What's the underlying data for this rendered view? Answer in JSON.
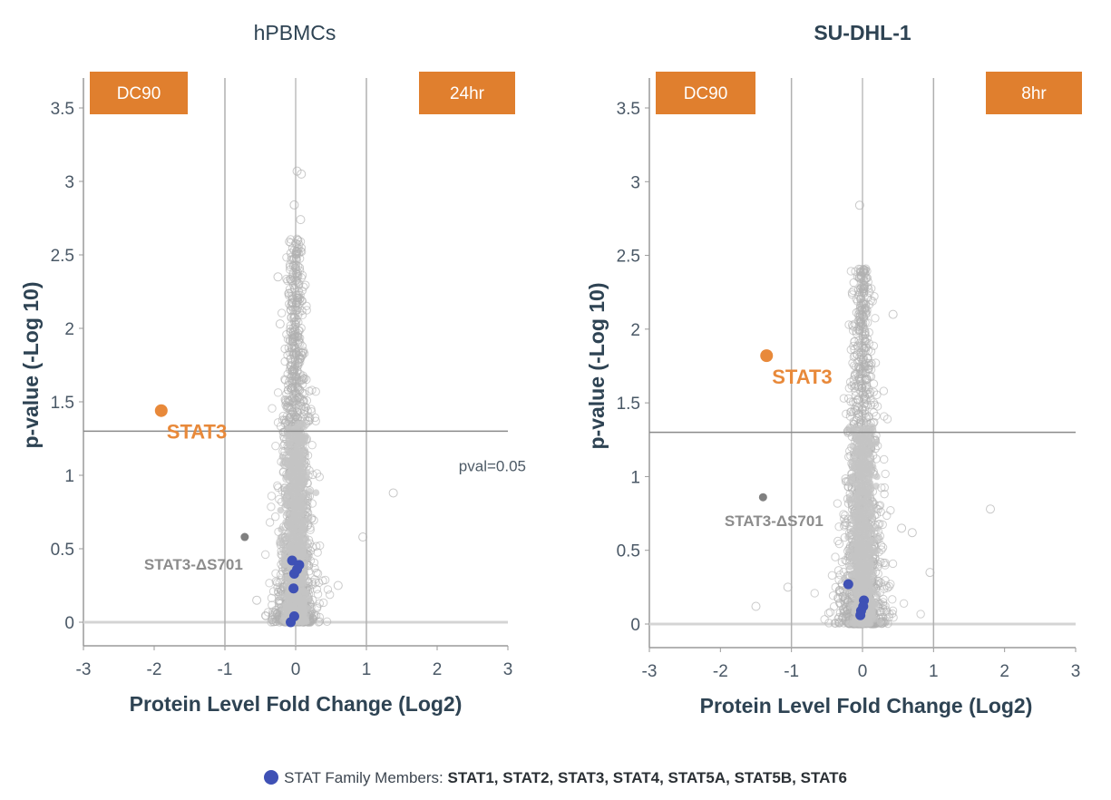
{
  "colors": {
    "badge": "#e07f2e",
    "stat3": "#e8893a",
    "stat_family": "#3f51b5",
    "background_points": "#b0b0b0",
    "stat3_ds701": "#808080",
    "gridline": "#9a9a9a",
    "axis_text": "#2e4353"
  },
  "legend": {
    "label": "STAT Family Members:",
    "members": "STAT1, STAT2, STAT3, STAT4, STAT5A, STAT5B, STAT6"
  },
  "chart_data": [
    {
      "type": "scatter",
      "title": "hPBMCs",
      "badge_left": "DC90",
      "badge_right": "24hr",
      "xlabel": "Protein Level Fold Change (Log2)",
      "ylabel": "p-value (-Log 10)",
      "xlim": [
        -3,
        3
      ],
      "ylim": [
        -0.16,
        3.7
      ],
      "xticks": [
        "-3",
        "-2",
        "-1",
        "0",
        "1",
        "2",
        "3"
      ],
      "yticks": [
        "0",
        "0.5",
        "1",
        "1.5",
        "2",
        "2.5",
        "3",
        "3.5"
      ],
      "vlines": [
        -1,
        0,
        1
      ],
      "hline": 1.3,
      "hline_label": "pval=0.05",
      "highlight": {
        "name": "STAT3",
        "x": -1.9,
        "y": 1.44
      },
      "secondary": {
        "name": "STAT3-ΔS701",
        "x": -0.72,
        "y": 0.58
      },
      "stat_family": [
        {
          "x": -0.05,
          "y": 0.42
        },
        {
          "x": 0.05,
          "y": 0.39
        },
        {
          "x": -0.02,
          "y": 0.33
        },
        {
          "x": 0.02,
          "y": 0.36
        },
        {
          "x": -0.03,
          "y": 0.23
        },
        {
          "x": -0.02,
          "y": 0.04
        },
        {
          "x": -0.07,
          "y": 0.0
        }
      ],
      "background_cloud": {
        "n_points": 1400,
        "center_x": 0.0,
        "spread_x": 0.13,
        "y_max": 3.07,
        "outliers": [
          [
            1.38,
            0.88
          ],
          [
            0.95,
            0.58
          ],
          [
            0.6,
            0.25
          ],
          [
            -0.55,
            0.15
          ],
          [
            -0.25,
            2.35
          ],
          [
            -0.22,
            2.03
          ],
          [
            0.02,
            3.07
          ],
          [
            0.08,
            3.05
          ],
          [
            -0.02,
            2.84
          ],
          [
            0.07,
            2.74
          ]
        ]
      }
    },
    {
      "type": "scatter",
      "title": "SU-DHL-1",
      "badge_left": "DC90",
      "badge_right": "8hr",
      "xlabel": "Protein Level Fold Change (Log2)",
      "ylabel": "p-value (-Log 10)",
      "xlim": [
        -3,
        3
      ],
      "ylim": [
        -0.16,
        3.7
      ],
      "xticks": [
        "-3",
        "-2",
        "-1",
        "0",
        "1",
        "2",
        "3"
      ],
      "yticks": [
        "0",
        "0.5",
        "1",
        "1.5",
        "2",
        "2.5",
        "3",
        "3.5"
      ],
      "vlines": [
        -1,
        0,
        1
      ],
      "hline": 1.3,
      "highlight": {
        "name": "STAT3",
        "x": -1.35,
        "y": 1.82
      },
      "secondary": {
        "name": "STAT3-ΔS701",
        "x": -1.4,
        "y": 0.86
      },
      "stat_family": [
        {
          "x": -0.2,
          "y": 0.27
        },
        {
          "x": 0.02,
          "y": 0.16
        },
        {
          "x": 0.01,
          "y": 0.12
        },
        {
          "x": -0.02,
          "y": 0.09
        },
        {
          "x": -0.03,
          "y": 0.06
        }
      ],
      "background_cloud": {
        "n_points": 1300,
        "center_x": 0.0,
        "spread_x": 0.15,
        "y_max": 2.84,
        "outliers": [
          [
            1.8,
            0.78
          ],
          [
            -1.05,
            0.25
          ],
          [
            -1.5,
            0.12
          ],
          [
            0.95,
            0.35
          ],
          [
            0.7,
            0.62
          ],
          [
            0.55,
            0.65
          ],
          [
            -0.04,
            2.84
          ],
          [
            0.43,
            2.1
          ],
          [
            0.08,
            1.75
          ]
        ]
      }
    }
  ]
}
